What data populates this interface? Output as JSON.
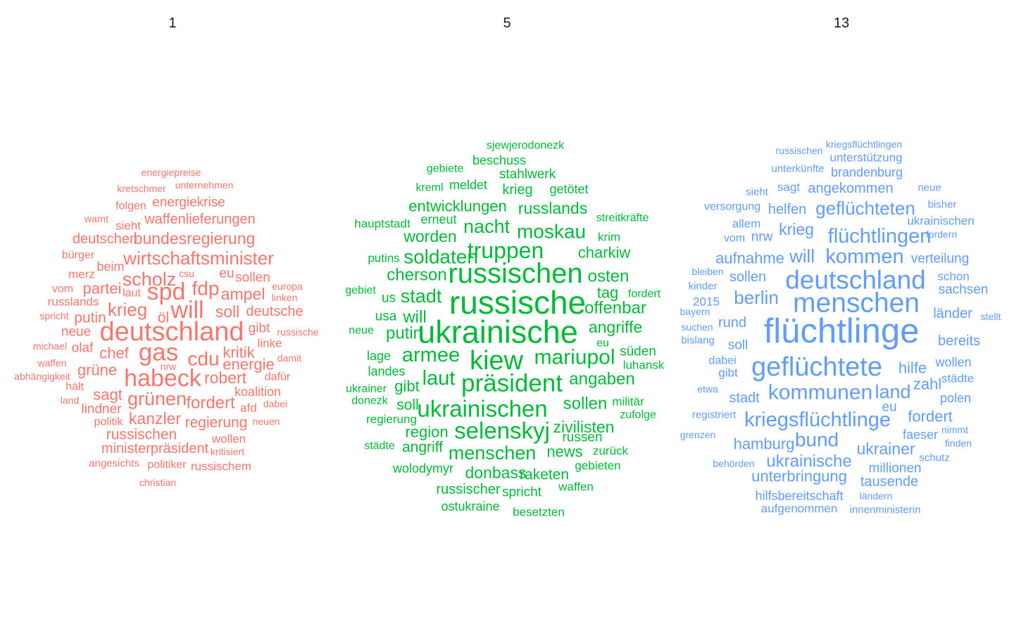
{
  "chart_data": [
    {
      "type": "wordcloud",
      "title": "1",
      "color": "#F8766D",
      "words": [
        {
          "text": "energiepreise",
          "size": 1
        },
        {
          "text": "kretschmer",
          "size": 1
        },
        {
          "text": "unternehmen",
          "size": 1
        },
        {
          "text": "folgen",
          "size": 1.2
        },
        {
          "text": "energiekrise",
          "size": 1.5
        },
        {
          "text": "warnt",
          "size": 1
        },
        {
          "text": "sieht",
          "size": 1.3
        },
        {
          "text": "waffenlieferungen",
          "size": 1.6
        },
        {
          "text": "deutschen",
          "size": 1.6
        },
        {
          "text": "bundesregierung",
          "size": 1.9
        },
        {
          "text": "bürger",
          "size": 1.2
        },
        {
          "text": "wirtschaftsminister",
          "size": 2.2
        },
        {
          "text": "merz",
          "size": 1.3
        },
        {
          "text": "beim",
          "size": 1.4
        },
        {
          "text": "csu",
          "size": 1
        },
        {
          "text": "eu",
          "size": 1.5
        },
        {
          "text": "sollen",
          "size": 1.5
        },
        {
          "text": "scholz",
          "size": 2.3
        },
        {
          "text": "europa",
          "size": 1
        },
        {
          "text": "vom",
          "size": 1.2
        },
        {
          "text": "partei",
          "size": 1.8
        },
        {
          "text": "laut",
          "size": 1.2
        },
        {
          "text": "spd",
          "size": 3
        },
        {
          "text": "fdp",
          "size": 2.4
        },
        {
          "text": "ampel",
          "size": 1.9
        },
        {
          "text": "linken",
          "size": 1
        },
        {
          "text": "russlands",
          "size": 1.3
        },
        {
          "text": "krieg",
          "size": 2.2
        },
        {
          "text": "will",
          "size": 3
        },
        {
          "text": "soll",
          "size": 1.9
        },
        {
          "text": "deutsche",
          "size": 1.6
        },
        {
          "text": "spricht",
          "size": 1
        },
        {
          "text": "putin",
          "size": 1.7
        },
        {
          "text": "öl",
          "size": 1.7
        },
        {
          "text": "neue",
          "size": 1.5
        },
        {
          "text": "deutschland",
          "size": 3.4
        },
        {
          "text": "gibt",
          "size": 1.5
        },
        {
          "text": "russische",
          "size": 1
        },
        {
          "text": "michael",
          "size": 1
        },
        {
          "text": "olaf",
          "size": 1.5
        },
        {
          "text": "linke",
          "size": 1.3
        },
        {
          "text": "chef",
          "size": 1.8
        },
        {
          "text": "gas",
          "size": 3.1
        },
        {
          "text": "kritik",
          "size": 1.8
        },
        {
          "text": "waffen",
          "size": 1
        },
        {
          "text": "cdu",
          "size": 2.4
        },
        {
          "text": "damit",
          "size": 1
        },
        {
          "text": "energie",
          "size": 1.8
        },
        {
          "text": "abhängigkeit",
          "size": 1
        },
        {
          "text": "grüne",
          "size": 1.8
        },
        {
          "text": "nrw",
          "size": 1
        },
        {
          "text": "habeck",
          "size": 3
        },
        {
          "text": "robert",
          "size": 1.9
        },
        {
          "text": "dafür",
          "size": 1.2
        },
        {
          "text": "hält",
          "size": 1.2
        },
        {
          "text": "koalition",
          "size": 1.4
        },
        {
          "text": "sagt",
          "size": 1.8
        },
        {
          "text": "land",
          "size": 1
        },
        {
          "text": "grünen",
          "size": 2.3
        },
        {
          "text": "fordert",
          "size": 2
        },
        {
          "text": "dabei",
          "size": 1
        },
        {
          "text": "lindner",
          "size": 1.5
        },
        {
          "text": "afd",
          "size": 1.3
        },
        {
          "text": "politik",
          "size": 1.2
        },
        {
          "text": "kanzler",
          "size": 1.9
        },
        {
          "text": "regierung",
          "size": 1.7
        },
        {
          "text": "neuen",
          "size": 1
        },
        {
          "text": "russischen",
          "size": 1.7
        },
        {
          "text": "wollen",
          "size": 1.3
        },
        {
          "text": "ministerpräsident",
          "size": 1.6
        },
        {
          "text": "kritisiert",
          "size": 1
        },
        {
          "text": "angesichts",
          "size": 1.1
        },
        {
          "text": "politiker",
          "size": 1.2
        },
        {
          "text": "russischem",
          "size": 1.3
        },
        {
          "text": "christian",
          "size": 1
        }
      ]
    },
    {
      "type": "wordcloud",
      "title": "5",
      "color": "#00BA38",
      "words": [
        {
          "text": "sjewjerodonezk",
          "size": 1.2
        },
        {
          "text": "beschuss",
          "size": 1.4
        },
        {
          "text": "gebiete",
          "size": 1.2
        },
        {
          "text": "stahlwerk",
          "size": 1.5
        },
        {
          "text": "kreml",
          "size": 1.2
        },
        {
          "text": "meldet",
          "size": 1.4
        },
        {
          "text": "krieg",
          "size": 1.6
        },
        {
          "text": "getötet",
          "size": 1.4
        },
        {
          "text": "entwicklungen",
          "size": 1.8
        },
        {
          "text": "russlands",
          "size": 1.9
        },
        {
          "text": "erneut",
          "size": 1.4
        },
        {
          "text": "hauptstadt",
          "size": 1.3
        },
        {
          "text": "streitkräfte",
          "size": 1.2
        },
        {
          "text": "nacht",
          "size": 2.3
        },
        {
          "text": "moskau",
          "size": 2.4
        },
        {
          "text": "worden",
          "size": 1.9
        },
        {
          "text": "krim",
          "size": 1.3
        },
        {
          "text": "truppen",
          "size": 2.8
        },
        {
          "text": "charkiw",
          "size": 1.8
        },
        {
          "text": "putins",
          "size": 1.3
        },
        {
          "text": "soldaten",
          "size": 2.4
        },
        {
          "text": "russischen",
          "size": 3.6
        },
        {
          "text": "cherson",
          "size": 2
        },
        {
          "text": "osten",
          "size": 2
        },
        {
          "text": "gebiet",
          "size": 1.2
        },
        {
          "text": "tag",
          "size": 1.8
        },
        {
          "text": "fordert",
          "size": 1.2
        },
        {
          "text": "us",
          "size": 1.5
        },
        {
          "text": "stadt",
          "size": 2.3
        },
        {
          "text": "russische",
          "size": 4.2
        },
        {
          "text": "offenbar",
          "size": 2
        },
        {
          "text": "usa",
          "size": 1.5
        },
        {
          "text": "will",
          "size": 2
        },
        {
          "text": "angriffe",
          "size": 1.9
        },
        {
          "text": "neue",
          "size": 1.2
        },
        {
          "text": "putin",
          "size": 2
        },
        {
          "text": "ukrainische",
          "size": 4.1
        },
        {
          "text": "eu",
          "size": 1.2
        },
        {
          "text": "lage",
          "size": 1.4
        },
        {
          "text": "armee",
          "size": 2.5
        },
        {
          "text": "kiew",
          "size": 3.4
        },
        {
          "text": "mariupol",
          "size": 2.6
        },
        {
          "text": "süden",
          "size": 1.5
        },
        {
          "text": "landes",
          "size": 1.4
        },
        {
          "text": "luhansk",
          "size": 1.3
        },
        {
          "text": "laut",
          "size": 2.5
        },
        {
          "text": "ukrainer",
          "size": 1.2
        },
        {
          "text": "gibt",
          "size": 1.8
        },
        {
          "text": "präsident",
          "size": 3.1
        },
        {
          "text": "angaben",
          "size": 2
        },
        {
          "text": "donezk",
          "size": 1.2
        },
        {
          "text": "militär",
          "size": 1.3
        },
        {
          "text": "soll",
          "size": 1.7
        },
        {
          "text": "ukrainischen",
          "size": 2.9
        },
        {
          "text": "sollen",
          "size": 2
        },
        {
          "text": "regierung",
          "size": 1.3
        },
        {
          "text": "zufolge",
          "size": 1.2
        },
        {
          "text": "region",
          "size": 1.8
        },
        {
          "text": "selenskyj",
          "size": 2.9
        },
        {
          "text": "zivilisten",
          "size": 1.9
        },
        {
          "text": "russen",
          "size": 1.5
        },
        {
          "text": "städte",
          "size": 1.2
        },
        {
          "text": "angriff",
          "size": 1.7
        },
        {
          "text": "menschen",
          "size": 2.3
        },
        {
          "text": "news",
          "size": 1.8
        },
        {
          "text": "zurück",
          "size": 1.3
        },
        {
          "text": "wolodymyr",
          "size": 1.4
        },
        {
          "text": "donbass",
          "size": 1.9
        },
        {
          "text": "raketen",
          "size": 1.7
        },
        {
          "text": "gebieten",
          "size": 1.3
        },
        {
          "text": "russischer",
          "size": 1.6
        },
        {
          "text": "spricht",
          "size": 1.5
        },
        {
          "text": "waffen",
          "size": 1.3
        },
        {
          "text": "ostukraine",
          "size": 1.4
        },
        {
          "text": "besetzten",
          "size": 1.3
        }
      ]
    },
    {
      "type": "wordcloud",
      "title": "13",
      "color": "#619CFF",
      "words": [
        {
          "text": "kriegsflüchtlingen",
          "size": 1
        },
        {
          "text": "russischen",
          "size": 1
        },
        {
          "text": "unterstützung",
          "size": 1.3
        },
        {
          "text": "unterkünfte",
          "size": 1.1
        },
        {
          "text": "brandenburg",
          "size": 1.4
        },
        {
          "text": "sieht",
          "size": 1.1
        },
        {
          "text": "sagt",
          "size": 1.3
        },
        {
          "text": "angekommen",
          "size": 1.6
        },
        {
          "text": "neue",
          "size": 1.1
        },
        {
          "text": "versorgung",
          "size": 1.2
        },
        {
          "text": "helfen",
          "size": 1.6
        },
        {
          "text": "geflüchteten",
          "size": 2.2
        },
        {
          "text": "bisher",
          "size": 1.1
        },
        {
          "text": "allem",
          "size": 1.3
        },
        {
          "text": "ukrainischen",
          "size": 1.3
        },
        {
          "text": "krieg",
          "size": 1.9
        },
        {
          "text": "vom",
          "size": 1.2
        },
        {
          "text": "nrw",
          "size": 1.5
        },
        {
          "text": "flüchtlingen",
          "size": 2.5
        },
        {
          "text": "fordern",
          "size": 1
        },
        {
          "text": "aufnahme",
          "size": 1.8
        },
        {
          "text": "will",
          "size": 2.2
        },
        {
          "text": "kommen",
          "size": 2.5
        },
        {
          "text": "verteilung",
          "size": 1.5
        },
        {
          "text": "bleiben",
          "size": 1
        },
        {
          "text": "sollen",
          "size": 1.6
        },
        {
          "text": "deutschland",
          "size": 3.3
        },
        {
          "text": "schon",
          "size": 1.3
        },
        {
          "text": "kinder",
          "size": 1.1
        },
        {
          "text": "sachsen",
          "size": 1.5
        },
        {
          "text": "berlin",
          "size": 2.2
        },
        {
          "text": "menschen",
          "size": 3.5
        },
        {
          "text": "2015",
          "size": 1.3
        },
        {
          "text": "länder",
          "size": 1.6
        },
        {
          "text": "bayern",
          "size": 1
        },
        {
          "text": "stellt",
          "size": 1
        },
        {
          "text": "suchen",
          "size": 1
        },
        {
          "text": "rund",
          "size": 1.6
        },
        {
          "text": "flüchtlinge",
          "size": 4.5
        },
        {
          "text": "bislang",
          "size": 1.1
        },
        {
          "text": "soll",
          "size": 1.5
        },
        {
          "text": "bereits",
          "size": 1.6
        },
        {
          "text": "dabei",
          "size": 1.2
        },
        {
          "text": "gibt",
          "size": 1.3
        },
        {
          "text": "geflüchtete",
          "size": 3.4
        },
        {
          "text": "hilfe",
          "size": 1.8
        },
        {
          "text": "wollen",
          "size": 1.4
        },
        {
          "text": "städte",
          "size": 1.3
        },
        {
          "text": "etwa",
          "size": 1
        },
        {
          "text": "zahl",
          "size": 1.8
        },
        {
          "text": "stadt",
          "size": 1.6
        },
        {
          "text": "kommunen",
          "size": 2.6
        },
        {
          "text": "land",
          "size": 2.3
        },
        {
          "text": "polen",
          "size": 1.4
        },
        {
          "text": "eu",
          "size": 1.5
        },
        {
          "text": "registriert",
          "size": 1.1
        },
        {
          "text": "fordert",
          "size": 1.8
        },
        {
          "text": "kriegsflüchtlinge",
          "size": 2.5
        },
        {
          "text": "grenzen",
          "size": 1
        },
        {
          "text": "faeser",
          "size": 1.4
        },
        {
          "text": "nimmt",
          "size": 1
        },
        {
          "text": "bund",
          "size": 2.4
        },
        {
          "text": "hamburg",
          "size": 1.8
        },
        {
          "text": "ukrainer",
          "size": 1.9
        },
        {
          "text": "finden",
          "size": 1
        },
        {
          "text": "schutz",
          "size": 1.1
        },
        {
          "text": "behörden",
          "size": 1
        },
        {
          "text": "ukrainische",
          "size": 2
        },
        {
          "text": "millionen",
          "size": 1.5
        },
        {
          "text": "unterbringung",
          "size": 1.8
        },
        {
          "text": "tausende",
          "size": 1.6
        },
        {
          "text": "hilfsbereitschaft",
          "size": 1.4
        },
        {
          "text": "ländern",
          "size": 1
        },
        {
          "text": "aufgenommen",
          "size": 1.3
        },
        {
          "text": "innenministerin",
          "size": 1.1
        }
      ]
    }
  ]
}
